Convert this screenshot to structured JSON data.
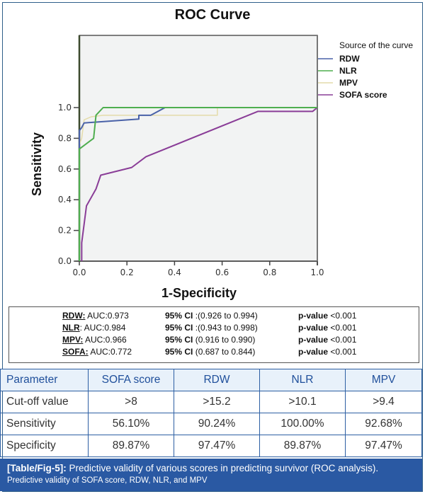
{
  "chart_data": {
    "type": "line",
    "title": "ROC Curve",
    "xlabel": "1-Specificity",
    "ylabel": "Sensitivity",
    "xlim": [
      0,
      1
    ],
    "ylim": [
      0,
      1
    ],
    "xticks": [
      "0.0",
      "0.2",
      "0.4",
      "0.6",
      "0.8",
      "1.0"
    ],
    "yticks": [
      "0.0",
      "0.2",
      "0.4",
      "0.6",
      "0.8",
      "1.0"
    ],
    "grid": false,
    "legend_title": "Source of the curve",
    "legend_position": "right",
    "series": [
      {
        "name": "RDW",
        "color": "#4a62a8",
        "x": [
          0.0,
          0.0,
          0.01,
          0.02,
          0.25,
          0.25,
          0.3,
          0.36,
          1.0
        ],
        "y": [
          0.0,
          0.85,
          0.87,
          0.9,
          0.925,
          0.95,
          0.95,
          1.0,
          1.0
        ]
      },
      {
        "name": "NLR",
        "color": "#4fae4f",
        "x": [
          0.0,
          0.0,
          0.06,
          0.07,
          0.1,
          1.0
        ],
        "y": [
          0.0,
          0.73,
          0.8,
          0.95,
          1.0,
          1.0
        ]
      },
      {
        "name": "MPV",
        "color": "#e4dcaa",
        "x": [
          0.0,
          0.0,
          0.01,
          0.02,
          0.05,
          0.1,
          0.58,
          0.58,
          1.0
        ],
        "y": [
          0.0,
          0.76,
          0.8,
          0.92,
          0.94,
          0.95,
          0.95,
          1.0,
          1.0
        ]
      },
      {
        "name": "SOFA score",
        "color": "#8a3d97",
        "x": [
          0.01,
          0.01,
          0.03,
          0.07,
          0.09,
          0.22,
          0.28,
          0.75,
          0.98,
          1.0
        ],
        "y": [
          0.0,
          0.12,
          0.36,
          0.47,
          0.56,
          0.61,
          0.68,
          0.975,
          0.975,
          1.0
        ]
      }
    ]
  },
  "stats": [
    {
      "name": "RDW:",
      "auc": " AUC:0.973",
      "ci_label": "95% CI",
      "ci": " :(0.926 to 0.994)",
      "p_label": "p-value",
      "p": " <0.001"
    },
    {
      "name": "NLR",
      "auc": ": AUC:0.984",
      "ci_label": "95% CI",
      "ci": " :(0.943 to 0.998)",
      "p_label": "p-value",
      "p": " <0.001"
    },
    {
      "name": "MPV:",
      "auc": " AUC:0.966",
      "ci_label": "95% CI",
      "ci": " (0.916 to 0.990)",
      "p_label": "p-value",
      "p": " <0.001"
    },
    {
      "name": "SOFA:",
      "auc": " AUC:0.772",
      "ci_label": "95% CI",
      "ci": " (0.687 to 0.844)",
      "p_label": "p-value",
      "p": " <0.001"
    }
  ],
  "table": {
    "headers": [
      "Parameter",
      "SOFA score",
      "RDW",
      "NLR",
      "MPV"
    ],
    "rows": [
      [
        "Cut-off value",
        ">8",
        ">15.2",
        ">10.1",
        ">9.4"
      ],
      [
        "Sensitivity",
        "56.10%",
        "90.24%",
        "100.00%",
        "92.68%"
      ],
      [
        "Specificity",
        "89.87%",
        "97.47%",
        "89.87%",
        "97.47%"
      ]
    ]
  },
  "caption": {
    "label": "[Table/Fig-5]:",
    "line1": " Predictive validity of various scores in predicting survivor (ROC analysis).",
    "line2": "Predictive validity of SOFA score, RDW, NLR, and MPV"
  }
}
